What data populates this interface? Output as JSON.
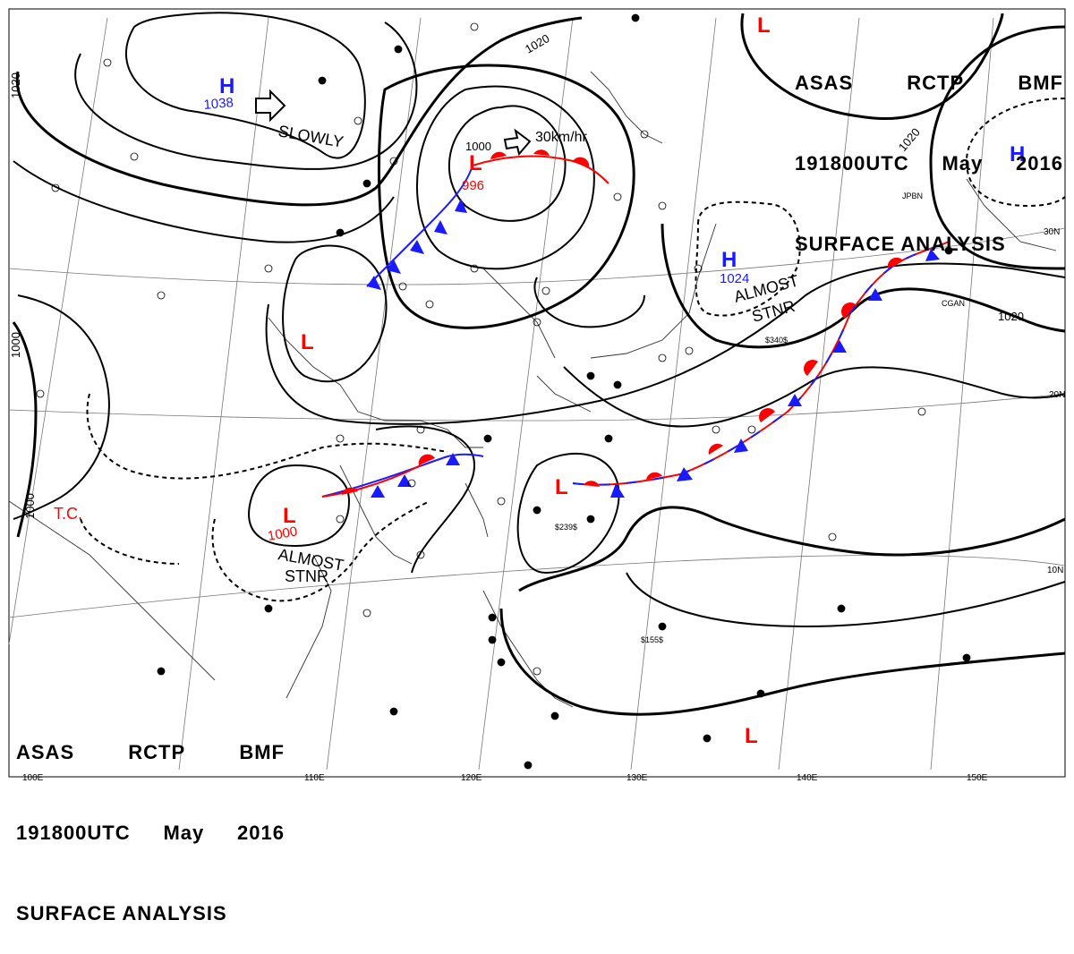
{
  "header_top": {
    "line1": [
      "ASAS",
      "RCTP",
      "BMF"
    ],
    "line2": [
      "191800UTC",
      "May",
      "2016"
    ],
    "line3": "SURFACE ANALYSIS"
  },
  "header_bottom": {
    "line1": [
      "ASAS",
      "RCTP",
      "BMF"
    ],
    "line2": [
      "191800UTC",
      "May",
      "2016"
    ],
    "line3": "SURFACE ANALYSIS"
  },
  "pressure_centers": [
    {
      "kind": "H",
      "value": "1038",
      "color": "#1a1aff"
    },
    {
      "kind": "H",
      "value": "1024",
      "color": "#1a1aff"
    },
    {
      "kind": "H",
      "value": "",
      "color": "#1a1aff"
    },
    {
      "kind": "L",
      "value": "996",
      "color": "#ff0000"
    },
    {
      "kind": "L",
      "value": "1000",
      "color": "#ff0000"
    },
    {
      "kind": "L",
      "value": "",
      "color": "#ff0000"
    },
    {
      "kind": "L",
      "value": "",
      "color": "#ff0000"
    },
    {
      "kind": "L",
      "value": "",
      "color": "#ff0000"
    },
    {
      "kind": "L",
      "value": "",
      "color": "#ff0000"
    }
  ],
  "isobar_labels": [
    "1020",
    "1020",
    "1020",
    "1020",
    "1000",
    "1000",
    "1000"
  ],
  "motion_labels": [
    "SLOWLY",
    "30km/hr"
  ],
  "stationary_labels": [
    [
      "ALMOST",
      "STNR"
    ],
    [
      "ALMOST",
      "STNR"
    ]
  ],
  "tc_label": "T.C.",
  "lat_labels": [
    "30N",
    "20N",
    "10N"
  ],
  "lon_labels": [
    "100E",
    "110E",
    "120E",
    "130E",
    "140E",
    "150E"
  ],
  "station_codes": [
    "JPBN",
    "CGAN",
    "$340$",
    "$155$",
    "$239$"
  ],
  "colors": {
    "high": "#1a1aff",
    "low": "#ff0000",
    "warm_front": "#ff0000",
    "cold_front": "#1a1aff",
    "isobar": "#000000",
    "graticule": "#555555"
  }
}
